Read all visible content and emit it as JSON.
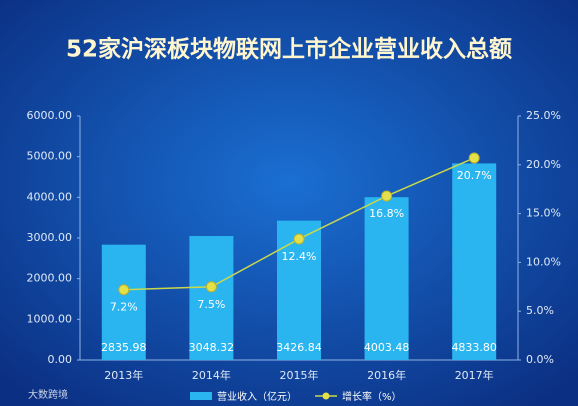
{
  "chart_data": {
    "type": "bar-line",
    "title": "52家沪深板块物联网上市企业营业收入总额",
    "watermark": "大数跨境",
    "categories": [
      "2013年",
      "2014年",
      "2015年",
      "2016年",
      "2017年"
    ],
    "series": [
      {
        "name": "营业收入（亿元）",
        "type": "bar",
        "color": "#2bb5f0",
        "values": [
          2835.98,
          3048.32,
          3426.84,
          4003.48,
          4833.8
        ],
        "value_labels": [
          "2835.98",
          "3048.32",
          "3426.84",
          "4003.48",
          "4833.80"
        ]
      },
      {
        "name": "增长率（%）",
        "type": "line",
        "axis": "y2",
        "color": "#c9d84a",
        "values": [
          7.2,
          7.5,
          12.4,
          16.8,
          20.7
        ],
        "value_labels": [
          "7.2%",
          "7.5%",
          "12.4%",
          "16.8%",
          "20.7%"
        ]
      }
    ],
    "ylim": [
      0,
      6000
    ],
    "yticks": [
      {
        "value": 0,
        "label": "0.00"
      },
      {
        "value": 1000,
        "label": "1000.00"
      },
      {
        "value": 2000,
        "label": "2000.00"
      },
      {
        "value": 3000,
        "label": "3000.00"
      },
      {
        "value": 4000,
        "label": "4000.00"
      },
      {
        "value": 5000,
        "label": "5000.00"
      },
      {
        "value": 6000,
        "label": "6000.00"
      }
    ],
    "y2lim": [
      0,
      25
    ],
    "y2ticks": [
      {
        "value": 0,
        "label": "0.0%"
      },
      {
        "value": 5,
        "label": "5.0%"
      },
      {
        "value": 10,
        "label": "10.0%"
      },
      {
        "value": 15,
        "label": "15.0%"
      },
      {
        "value": 20,
        "label": "20.0%"
      },
      {
        "value": 25,
        "label": "25.0%"
      }
    ],
    "legend": "bottom"
  }
}
